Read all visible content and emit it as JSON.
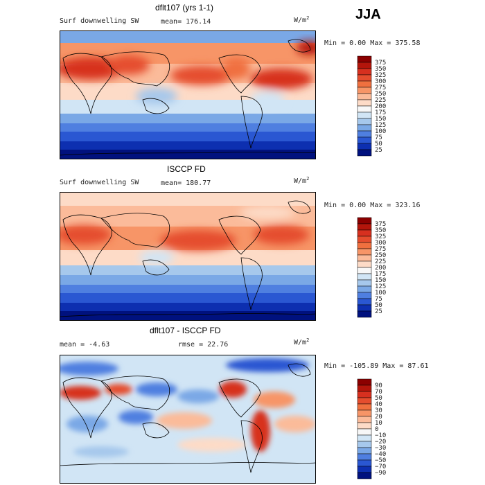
{
  "season": "JJA",
  "units": "W/m",
  "units_sup": "2",
  "panels": [
    {
      "title": "dflt107 (yrs 1-1)",
      "left_label": "Surf downwelling SW",
      "center_label": "mean= 176.14",
      "minmax": "Min =    0.00 Max = 375.58"
    },
    {
      "title": "ISCCP FD",
      "left_label": "Surf downwelling SW",
      "center_label": "mean= 180.77",
      "minmax": "Min =    0.00 Max = 323.16"
    },
    {
      "title": "dflt107 - ISCCP FD",
      "left_label": "mean =   -4.63",
      "center_label": "rmse =   22.76",
      "minmax": "Min = -105.89 Max =  87.61"
    }
  ],
  "chart_data": [
    {
      "type": "heatmap",
      "title": "dflt107 (yrs 1-1)",
      "variable": "Surf downwelling SW",
      "mean": 176.14,
      "min": 0.0,
      "max": 375.58,
      "colorbar_labels": [
        "375",
        "350",
        "325",
        "300",
        "275",
        "250",
        "225",
        "200",
        "175",
        "150",
        "125",
        "100",
        "75",
        "50",
        "25"
      ],
      "colorbar_colors": [
        "#8b0000",
        "#b3150b",
        "#d7301f",
        "#e54d2e",
        "#f0703f",
        "#f79567",
        "#fbbb9a",
        "#fddbc7",
        "#f7f7f7",
        "#d1e5f5",
        "#a6c8ec",
        "#7aa8e6",
        "#4f7fe0",
        "#2a57d2",
        "#0d2fb0",
        "#00117e"
      ]
    },
    {
      "type": "heatmap",
      "title": "ISCCP FD",
      "variable": "Surf downwelling SW",
      "mean": 180.77,
      "min": 0.0,
      "max": 323.16,
      "colorbar_labels": [
        "375",
        "350",
        "325",
        "300",
        "275",
        "250",
        "225",
        "200",
        "175",
        "150",
        "125",
        "100",
        "75",
        "50",
        "25"
      ],
      "colorbar_colors": [
        "#8b0000",
        "#b3150b",
        "#d7301f",
        "#e54d2e",
        "#f0703f",
        "#f79567",
        "#fbbb9a",
        "#fddbc7",
        "#f7f7f7",
        "#d1e5f5",
        "#a6c8ec",
        "#7aa8e6",
        "#4f7fe0",
        "#2a57d2",
        "#0d2fb0",
        "#00117e"
      ]
    },
    {
      "type": "heatmap",
      "title": "dflt107 - ISCCP FD",
      "mean": -4.63,
      "rmse": 22.76,
      "min": -105.89,
      "max": 87.61,
      "colorbar_labels": [
        "90",
        "70",
        "50",
        "40",
        "30",
        "20",
        "10",
        "0",
        "-10",
        "-20",
        "-30",
        "-40",
        "-50",
        "-70",
        "-90"
      ],
      "colorbar_colors": [
        "#8b0000",
        "#b3150b",
        "#d7301f",
        "#e54d2e",
        "#f0703f",
        "#f79567",
        "#fbbb9a",
        "#fddbc7",
        "#f7f7f7",
        "#d1e5f5",
        "#a6c8ec",
        "#7aa8e6",
        "#4f7fe0",
        "#2a57d2",
        "#0d2fb0",
        "#00117e"
      ]
    }
  ]
}
